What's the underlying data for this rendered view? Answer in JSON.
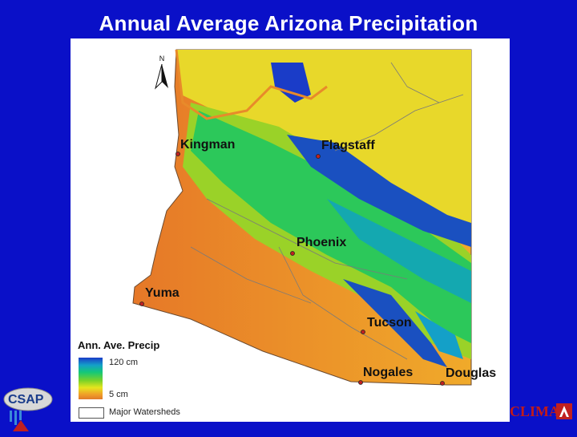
{
  "title": "Annual Average Arizona Precipitation",
  "map": {
    "north_label": "N",
    "cities": [
      {
        "name": "Kingman"
      },
      {
        "name": "Flagstaff"
      },
      {
        "name": "Phoenix"
      },
      {
        "name": "Yuma"
      },
      {
        "name": "Tucson"
      },
      {
        "name": "Nogales"
      },
      {
        "name": "Douglas"
      }
    ],
    "legend": {
      "title": "Ann. Ave. Precip",
      "high": "120 cm",
      "low": "5 cm",
      "watersheds": "Major Watersheds"
    }
  },
  "logos": {
    "csap": "CSAP",
    "climas": "CLIMAS"
  },
  "colors": {
    "background": "#0a10c8",
    "wet": "#1a3cc8",
    "mid": "#14c878",
    "dry": "#e07a2a"
  }
}
